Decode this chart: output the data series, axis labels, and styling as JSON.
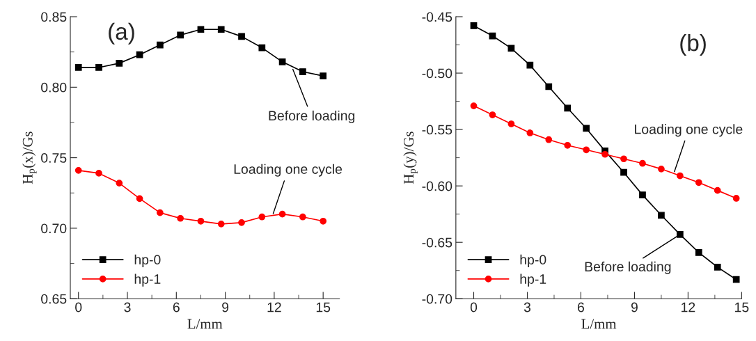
{
  "chart_data": [
    {
      "type": "line",
      "xlabel": "L/mm",
      "ylabel": "H$_{p}$(x)/Gs",
      "x": [
        0,
        1.25,
        2.5,
        3.75,
        5,
        6.25,
        7.5,
        8.75,
        10,
        11.25,
        12.5,
        13.75,
        15
      ],
      "series": [
        {
          "name": "hp-0",
          "color": "#000000",
          "marker": "square",
          "values": [
            0.814,
            0.814,
            0.817,
            0.823,
            0.83,
            0.837,
            0.841,
            0.841,
            0.836,
            0.828,
            0.818,
            0.811,
            0.808
          ]
        },
        {
          "name": "hp-1",
          "color": "#ff0000",
          "marker": "circle",
          "values": [
            0.741,
            0.739,
            0.732,
            0.721,
            0.711,
            0.707,
            0.705,
            0.703,
            0.704,
            0.708,
            0.71,
            0.708,
            0.705
          ]
        }
      ],
      "xlim": [
        -0.5,
        16
      ],
      "xticks": [
        0,
        3,
        6,
        9,
        12,
        15
      ],
      "ylim": [
        0.65,
        0.85
      ],
      "yticks": [
        {
          "value": 0.65,
          "label": "0.65"
        },
        {
          "value": 0.7,
          "label": "0.70"
        },
        {
          "value": 0.75,
          "label": "0.75"
        },
        {
          "value": 0.8,
          "label": "0.80"
        },
        {
          "value": 0.85,
          "label": "0.85"
        }
      ],
      "annotations": [
        "(a)",
        {
          "text": "Before loading",
          "x": 13.1,
          "y": 0.814
        },
        {
          "text": "Loading one cycle",
          "x": 11.9,
          "y": 0.709
        }
      ],
      "legend": "bottom left",
      "grid": false,
      "line_style": "solid"
    },
    {
      "type": "line",
      "xlabel": "L/mm",
      "ylabel": "H$_{p}$(y)/Gs",
      "x": [
        0,
        1.05,
        2.1,
        3.15,
        4.2,
        5.25,
        6.3,
        7.35,
        8.4,
        9.45,
        10.5,
        11.55,
        12.6,
        13.65,
        14.7
      ],
      "series": [
        {
          "name": "hp-0",
          "color": "#000000",
          "marker": "square",
          "values": [
            -0.458,
            -0.467,
            -0.478,
            -0.493,
            -0.512,
            -0.531,
            -0.549,
            -0.569,
            -0.588,
            -0.608,
            -0.626,
            -0.643,
            -0.659,
            -0.672,
            -0.683
          ]
        },
        {
          "name": "hp-1",
          "color": "#ff0000",
          "marker": "circle",
          "values": [
            -0.529,
            -0.537,
            -0.545,
            -0.553,
            -0.559,
            -0.564,
            -0.568,
            -0.572,
            -0.576,
            -0.58,
            -0.585,
            -0.591,
            -0.597,
            -0.604,
            -0.611
          ]
        }
      ],
      "xlim": [
        -1,
        15
      ],
      "xticks": [
        0,
        3,
        6,
        9,
        12,
        15
      ],
      "ylim": [
        -0.7,
        -0.45
      ],
      "yticks": [
        {
          "value": -0.7,
          "label": "-0.70"
        },
        {
          "value": -0.65,
          "label": "-0.65"
        },
        {
          "value": -0.6,
          "label": "-0.60"
        },
        {
          "value": -0.55,
          "label": "-0.55"
        },
        {
          "value": -0.5,
          "label": "-0.50"
        },
        {
          "value": -0.45,
          "label": "-0.45"
        }
      ],
      "annotations": [
        "(b)",
        {
          "text": "Loading one cycle",
          "x": 11.2,
          "y": -0.589
        },
        {
          "text": "Before loading",
          "x": 11.55,
          "y": -0.643
        }
      ],
      "legend": "bottom left",
      "grid": false,
      "line_style": "solid"
    }
  ]
}
